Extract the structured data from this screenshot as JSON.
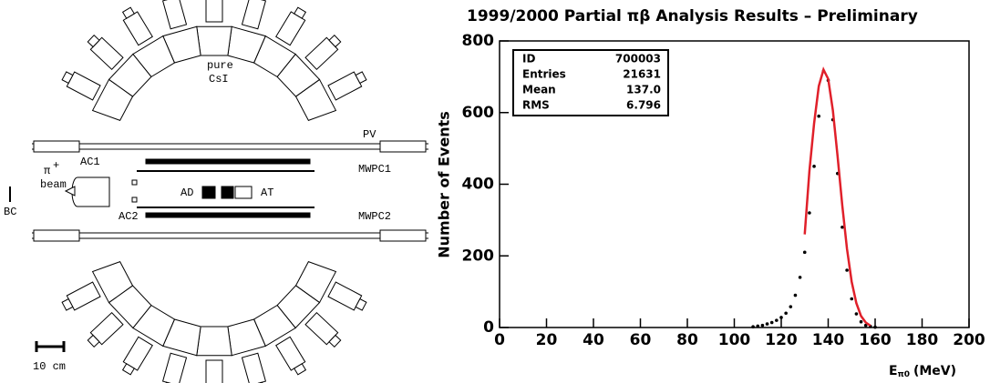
{
  "diagram": {
    "labels": {
      "pure": "pure",
      "csi": "CsI",
      "pv": "PV",
      "ac1": "AC1",
      "pi": "π",
      "pi_charge": "+",
      "beam": "beam",
      "ad": "AD",
      "at": "AT",
      "mwpc1": "MWPC1",
      "ac2": "AC2",
      "mwpc2": "MWPC2",
      "bc": "BC",
      "scale": "10 cm"
    }
  },
  "chart_data": {
    "type": "scatter",
    "title": "1999/2000 Partial πβ Analysis Results – Preliminary",
    "y_label": "Number of Events",
    "x_label": {
      "main": "E",
      "sub": "π0",
      "unit": "(MeV)"
    },
    "xlim": [
      0,
      200
    ],
    "xticks": [
      0,
      20,
      40,
      60,
      80,
      100,
      120,
      140,
      160,
      180,
      200
    ],
    "ylim": [
      0,
      800
    ],
    "yticks": [
      0,
      200,
      400,
      600,
      800
    ],
    "stats_box": [
      {
        "label": "ID",
        "value": "700003"
      },
      {
        "label": "Entries",
        "value": "21631"
      },
      {
        "label": "Mean",
        "value": "137.0"
      },
      {
        "label": "RMS",
        "value": "6.796"
      }
    ],
    "series": [
      {
        "style": "points",
        "color": "#000000",
        "x": [
          108,
          110,
          112,
          114,
          116,
          118,
          120,
          122,
          124,
          126,
          128,
          130,
          132,
          134,
          136,
          138,
          140,
          142,
          144,
          146,
          148,
          150,
          152,
          154,
          156,
          158,
          160
        ],
        "values": [
          2,
          4,
          6,
          10,
          14,
          20,
          28,
          40,
          58,
          90,
          140,
          210,
          320,
          450,
          590,
          715,
          690,
          580,
          430,
          280,
          160,
          80,
          38,
          16,
          6,
          3,
          1
        ]
      },
      {
        "style": "line",
        "color": "#e0202a",
        "x": [
          130,
          132,
          134,
          136,
          138,
          140,
          142,
          144,
          146,
          148,
          150,
          152,
          154,
          156,
          158
        ],
        "values": [
          260,
          437,
          570,
          674,
          720,
          694,
          606,
          478,
          341,
          220,
          128,
          68,
          32,
          14,
          5
        ]
      }
    ]
  }
}
